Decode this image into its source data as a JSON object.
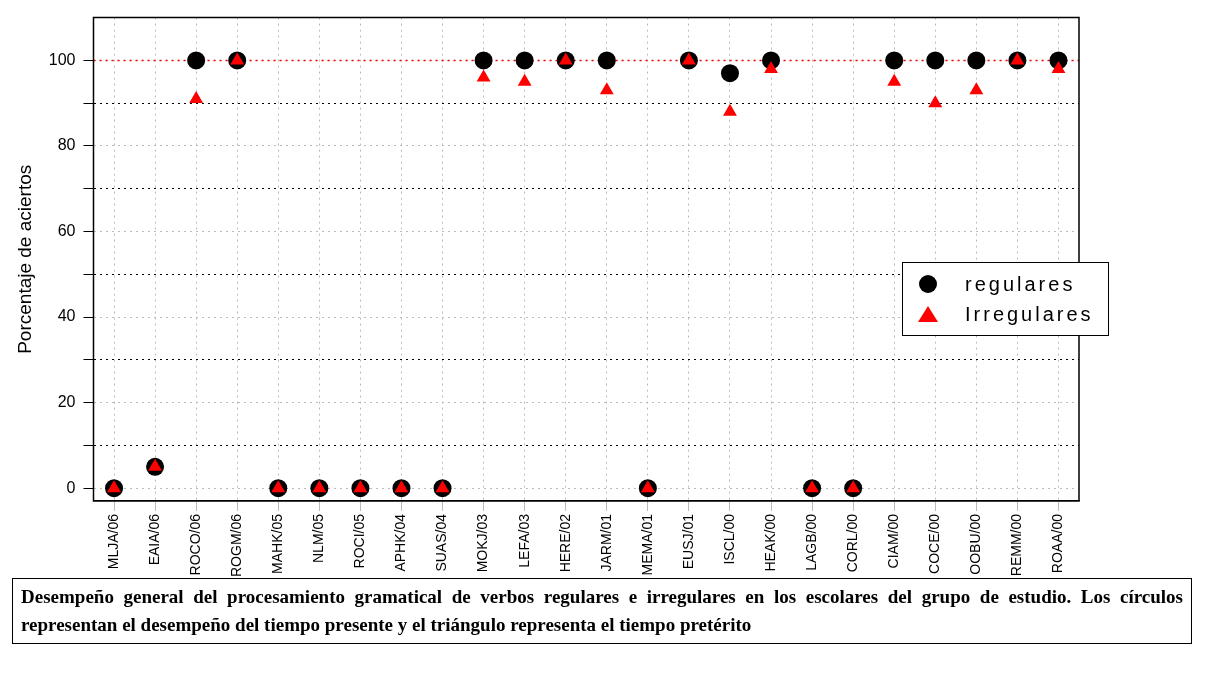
{
  "chart_data": {
    "type": "scatter",
    "ylabel": "Porcentaje de aciertos",
    "categories": [
      "MLJA/06",
      "EAIA/06",
      "ROCO/06",
      "ROGM/06",
      "MAHK/05",
      "NLM/05",
      "ROCI/05",
      "APHK/04",
      "SUAS/04",
      "MOKJ/03",
      "LEFA/03",
      "HERE/02",
      "JARM/01",
      "MEMA/01",
      "EUSJ/01",
      "ISCL/00",
      "HEAK/00",
      "LAGB/00",
      "CORL/00",
      "CIAM/00",
      "COCE/00",
      "OOBU/00",
      "REMM/00",
      "ROAA/00"
    ],
    "series": [
      {
        "name": "regulares",
        "color": "#000000",
        "marker": "circle",
        "values": [
          0,
          5,
          100,
          100,
          0,
          0,
          0,
          0,
          0,
          100,
          100,
          100,
          100,
          0,
          100,
          97,
          100,
          0,
          0,
          100,
          100,
          100,
          100,
          100
        ]
      },
      {
        "name": "Irregulares",
        "color": "#ff0000",
        "marker": "triangle",
        "values": [
          0,
          5,
          91,
          100,
          0,
          0,
          0,
          0,
          0,
          96,
          95,
          100,
          93,
          0,
          100,
          88,
          98,
          0,
          0,
          95,
          90,
          93,
          100,
          98
        ]
      }
    ],
    "ylim": [
      -3,
      110
    ],
    "yticks": [
      0,
      {
        "value": 10,
        "label": null
      },
      20,
      {
        "value": 30,
        "label": null
      },
      40,
      {
        "value": 50,
        "label": null
      },
      60,
      {
        "value": 70,
        "label": null
      },
      80,
      {
        "value": 90,
        "label": null
      },
      100
    ],
    "grid": true,
    "legend": "right",
    "ref_lines": [
      {
        "axis": "y",
        "value": 100,
        "color": "#ff0000",
        "line_style": "dotted"
      }
    ],
    "annotations": [
      "Desempeño general del procesamiento gramatical de verbos regulares e irregulares en los escolares del grupo de estudio. Los círculos representan el desempeño del tiempo presente y el triángulo representa el tiempo pretérito"
    ]
  }
}
